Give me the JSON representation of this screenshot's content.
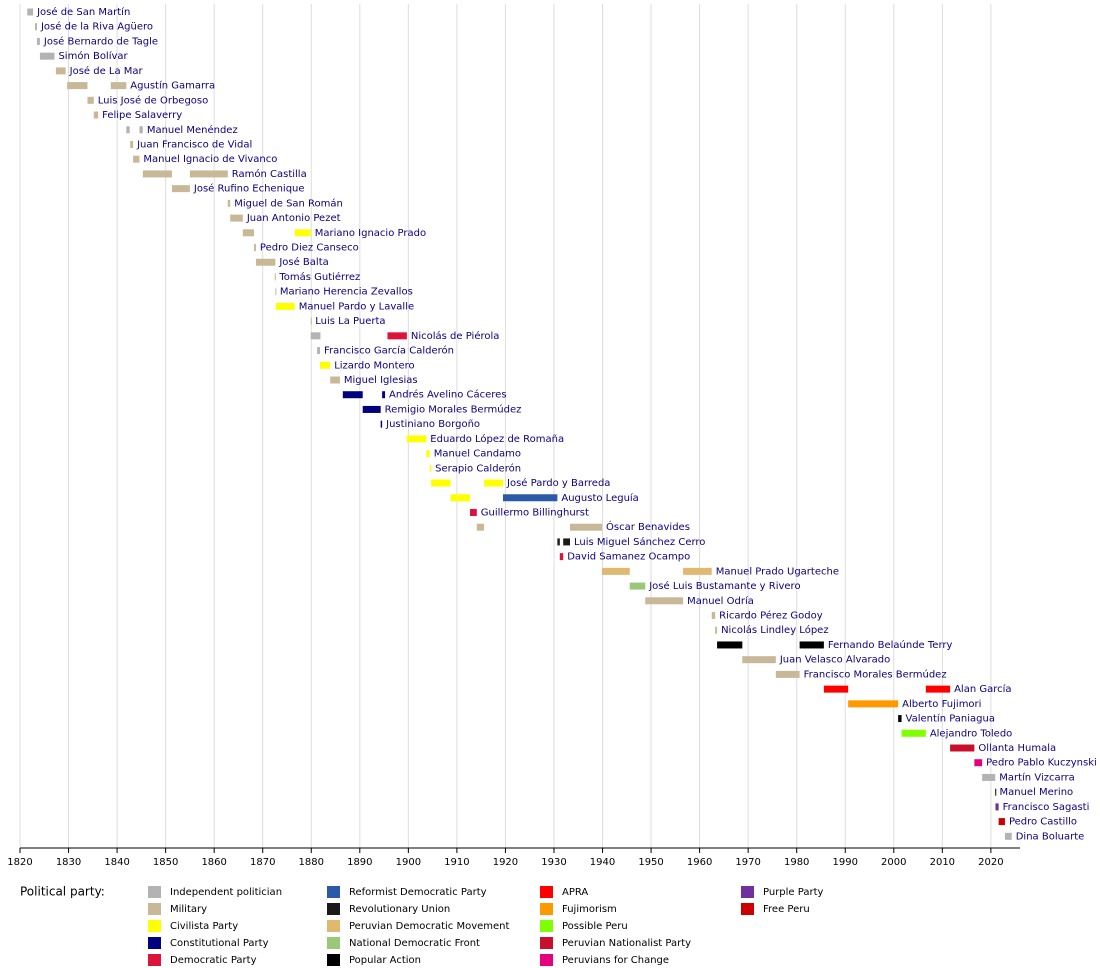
{
  "chart_data": {
    "type": "timeline",
    "xlim": [
      1820,
      2026
    ],
    "xticks": [
      1820,
      1830,
      1840,
      1850,
      1860,
      1870,
      1880,
      1890,
      1900,
      1910,
      1920,
      1930,
      1940,
      1950,
      1960,
      1970,
      1980,
      1990,
      2000,
      2010,
      2020
    ],
    "grid": true,
    "legend_title": "Political party:",
    "parties": [
      {
        "name": "Independent politician",
        "color": "#b3b3b3"
      },
      {
        "name": "Military",
        "color": "#c8b898"
      },
      {
        "name": "Civilista Party",
        "color": "#ffff00"
      },
      {
        "name": "Constitutional Party",
        "color": "#000080"
      },
      {
        "name": "Democratic Party",
        "color": "#dc143c"
      },
      {
        "name": "Reformist Democratic Party",
        "color": "#2b5ba8"
      },
      {
        "name": "Revolutionary Union",
        "color": "#1a1a1a"
      },
      {
        "name": "Peruvian Democratic Movement",
        "color": "#e0b870"
      },
      {
        "name": "National Democratic Front",
        "color": "#98c878"
      },
      {
        "name": "Popular Action",
        "color": "#000000"
      },
      {
        "name": "APRA",
        "color": "#ff0000"
      },
      {
        "name": "Fujimorism",
        "color": "#ff9900"
      },
      {
        "name": "Possible Peru",
        "color": "#80ff00"
      },
      {
        "name": "Peruvian Nationalist Party",
        "color": "#c8102e"
      },
      {
        "name": "Peruvians for Change",
        "color": "#e6007e"
      },
      {
        "name": "Purple Party",
        "color": "#7030a0"
      },
      {
        "name": "Free Peru",
        "color": "#cc0000"
      }
    ],
    "presidents": [
      {
        "name": "José de San Martín",
        "terms": [
          {
            "start": 1821.5,
            "end": 1822.7,
            "party": "Independent politician"
          }
        ]
      },
      {
        "name": "José de la Riva Agüero",
        "terms": [
          {
            "start": 1823.1,
            "end": 1823.5,
            "party": "Independent politician"
          }
        ]
      },
      {
        "name": "José Bernardo de Tagle",
        "terms": [
          {
            "start": 1823.5,
            "end": 1824.1,
            "party": "Independent politician"
          }
        ]
      },
      {
        "name": "Simón Bolívar",
        "terms": [
          {
            "start": 1824.1,
            "end": 1827.1,
            "party": "Independent politician"
          }
        ]
      },
      {
        "name": "José de La Mar",
        "terms": [
          {
            "start": 1827.4,
            "end": 1829.4,
            "party": "Military"
          }
        ]
      },
      {
        "name": "Agustín Gamarra",
        "terms": [
          {
            "start": 1829.7,
            "end": 1833.9,
            "party": "Military"
          },
          {
            "start": 1838.7,
            "end": 1841.9,
            "party": "Military"
          }
        ]
      },
      {
        "name": "Luis José de Orbegoso",
        "terms": [
          {
            "start": 1833.9,
            "end": 1835.2,
            "party": "Military"
          }
        ]
      },
      {
        "name": "Felipe Salaverry",
        "terms": [
          {
            "start": 1835.2,
            "end": 1836.1,
            "party": "Military"
          }
        ]
      },
      {
        "name": "Manuel Menéndez",
        "terms": [
          {
            "start": 1841.9,
            "end": 1842.6,
            "party": "Independent politician"
          },
          {
            "start": 1844.6,
            "end": 1845.3,
            "party": "Independent politician"
          }
        ]
      },
      {
        "name": "Juan Francisco de Vidal",
        "terms": [
          {
            "start": 1842.7,
            "end": 1843.3,
            "party": "Military"
          }
        ]
      },
      {
        "name": "Manuel Ignacio de Vivanco",
        "terms": [
          {
            "start": 1843.3,
            "end": 1844.6,
            "party": "Military"
          }
        ]
      },
      {
        "name": "Ramón Castilla",
        "terms": [
          {
            "start": 1845.3,
            "end": 1851.3,
            "party": "Military"
          },
          {
            "start": 1855.0,
            "end": 1862.8,
            "party": "Military"
          }
        ]
      },
      {
        "name": "José Rufino Echenique",
        "terms": [
          {
            "start": 1851.3,
            "end": 1855.0,
            "party": "Military"
          }
        ]
      },
      {
        "name": "Miguel de San Román",
        "terms": [
          {
            "start": 1862.8,
            "end": 1863.3,
            "party": "Military"
          }
        ]
      },
      {
        "name": "Juan Antonio Pezet",
        "terms": [
          {
            "start": 1863.3,
            "end": 1865.9,
            "party": "Military"
          }
        ]
      },
      {
        "name": "Mariano Ignacio Prado",
        "terms": [
          {
            "start": 1865.9,
            "end": 1868.2,
            "party": "Military"
          },
          {
            "start": 1876.6,
            "end": 1879.9,
            "party": "Civilista Party"
          }
        ]
      },
      {
        "name": "Pedro Diez Canseco",
        "terms": [
          {
            "start": 1868.2,
            "end": 1868.6,
            "party": "Military"
          }
        ]
      },
      {
        "name": "José Balta",
        "terms": [
          {
            "start": 1868.6,
            "end": 1872.6,
            "party": "Military"
          }
        ]
      },
      {
        "name": "Tomás Gutiérrez",
        "terms": [
          {
            "start": 1872.5,
            "end": 1872.6,
            "party": "Military"
          }
        ]
      },
      {
        "name": "Mariano Herencia Zevallos",
        "terms": [
          {
            "start": 1872.6,
            "end": 1872.7,
            "party": "Military"
          }
        ]
      },
      {
        "name": "Manuel Pardo y Lavalle",
        "terms": [
          {
            "start": 1872.7,
            "end": 1876.6,
            "party": "Civilista Party"
          }
        ]
      },
      {
        "name": "Luis La Puerta",
        "terms": [
          {
            "start": 1879.9,
            "end": 1880.0,
            "party": "Military"
          }
        ]
      },
      {
        "name": "Nicolás de Piérola",
        "terms": [
          {
            "start": 1879.9,
            "end": 1881.9,
            "party": "Independent politician"
          },
          {
            "start": 1895.7,
            "end": 1899.7,
            "party": "Democratic Party"
          }
        ]
      },
      {
        "name": "Francisco García Calderón",
        "terms": [
          {
            "start": 1881.2,
            "end": 1881.8,
            "party": "Independent politician"
          }
        ]
      },
      {
        "name": "Lizardo Montero",
        "terms": [
          {
            "start": 1881.8,
            "end": 1883.9,
            "party": "Civilista Party"
          }
        ]
      },
      {
        "name": "Miguel Iglesias",
        "terms": [
          {
            "start": 1883.9,
            "end": 1885.9,
            "party": "Military"
          }
        ]
      },
      {
        "name": "Andrés Avelino Cáceres",
        "terms": [
          {
            "start": 1886.5,
            "end": 1890.6,
            "party": "Constitutional Party"
          },
          {
            "start": 1894.6,
            "end": 1895.2,
            "party": "Constitutional Party"
          }
        ]
      },
      {
        "name": "Remigio Morales Bermúdez",
        "terms": [
          {
            "start": 1890.6,
            "end": 1894.3,
            "party": "Constitutional Party"
          }
        ]
      },
      {
        "name": "Justiniano Borgoño",
        "terms": [
          {
            "start": 1894.3,
            "end": 1894.6,
            "party": "Constitutional Party"
          }
        ]
      },
      {
        "name": "Eduardo López de Romaña",
        "terms": [
          {
            "start": 1899.7,
            "end": 1903.7,
            "party": "Civilista Party"
          }
        ]
      },
      {
        "name": "Manuel Candamo",
        "terms": [
          {
            "start": 1903.7,
            "end": 1904.4,
            "party": "Civilista Party"
          }
        ]
      },
      {
        "name": "Serapio Calderón",
        "terms": [
          {
            "start": 1904.4,
            "end": 1904.7,
            "party": "Civilista Party"
          }
        ]
      },
      {
        "name": "José Pardo y Barreda",
        "terms": [
          {
            "start": 1904.7,
            "end": 1908.7,
            "party": "Civilista Party"
          },
          {
            "start": 1915.6,
            "end": 1919.5,
            "party": "Civilista Party"
          }
        ]
      },
      {
        "name": "Augusto Leguía",
        "terms": [
          {
            "start": 1908.7,
            "end": 1912.7,
            "party": "Civilista Party"
          },
          {
            "start": 1919.5,
            "end": 1930.7,
            "party": "Reformist Democratic Party"
          }
        ]
      },
      {
        "name": "Guillermo Billinghurst",
        "terms": [
          {
            "start": 1912.7,
            "end": 1914.1,
            "party": "Democratic Party"
          }
        ]
      },
      {
        "name": "Óscar Benavides",
        "terms": [
          {
            "start": 1914.1,
            "end": 1915.6,
            "party": "Military"
          },
          {
            "start": 1933.3,
            "end": 1939.9,
            "party": "Military"
          }
        ]
      },
      {
        "name": "Luis Miguel Sánchez Cerro",
        "terms": [
          {
            "start": 1930.7,
            "end": 1931.2,
            "party": "Revolutionary Union"
          },
          {
            "start": 1931.9,
            "end": 1933.3,
            "party": "Revolutionary Union"
          }
        ]
      },
      {
        "name": "David Samanez Ocampo",
        "terms": [
          {
            "start": 1931.2,
            "end": 1931.9,
            "party": "Democratic Party"
          }
        ]
      },
      {
        "name": "Manuel Prado Ugarteche",
        "terms": [
          {
            "start": 1939.9,
            "end": 1945.6,
            "party": "Peruvian Democratic Movement"
          },
          {
            "start": 1956.6,
            "end": 1962.5,
            "party": "Peruvian Democratic Movement"
          }
        ]
      },
      {
        "name": "José Luis Bustamante y Rivero",
        "terms": [
          {
            "start": 1945.6,
            "end": 1948.8,
            "party": "National Democratic Front"
          }
        ]
      },
      {
        "name": "Manuel Odría",
        "terms": [
          {
            "start": 1948.8,
            "end": 1956.6,
            "party": "Military"
          }
        ]
      },
      {
        "name": "Ricardo Pérez Godoy",
        "terms": [
          {
            "start": 1962.5,
            "end": 1963.2,
            "party": "Military"
          }
        ]
      },
      {
        "name": "Nicolás Lindley López",
        "terms": [
          {
            "start": 1963.2,
            "end": 1963.6,
            "party": "Military"
          }
        ]
      },
      {
        "name": "Fernando Belaúnde Terry",
        "terms": [
          {
            "start": 1963.6,
            "end": 1968.8,
            "party": "Popular Action"
          },
          {
            "start": 1980.6,
            "end": 1985.6,
            "party": "Popular Action"
          }
        ]
      },
      {
        "name": "Juan Velasco Alvarado",
        "terms": [
          {
            "start": 1968.8,
            "end": 1975.7,
            "party": "Military"
          }
        ]
      },
      {
        "name": "Francisco Morales Bermúdez",
        "terms": [
          {
            "start": 1975.7,
            "end": 1980.6,
            "party": "Military"
          }
        ]
      },
      {
        "name": "Alan García",
        "terms": [
          {
            "start": 1985.6,
            "end": 1990.6,
            "party": "APRA"
          },
          {
            "start": 2006.6,
            "end": 2011.6,
            "party": "APRA"
          }
        ]
      },
      {
        "name": "Alberto Fujimori",
        "terms": [
          {
            "start": 1990.6,
            "end": 2000.9,
            "party": "Fujimorism"
          }
        ]
      },
      {
        "name": "Valentín Paniagua",
        "terms": [
          {
            "start": 2000.9,
            "end": 2001.6,
            "party": "Popular Action"
          }
        ]
      },
      {
        "name": "Alejandro Toledo",
        "terms": [
          {
            "start": 2001.6,
            "end": 2006.6,
            "party": "Possible Peru"
          }
        ]
      },
      {
        "name": "Ollanta Humala",
        "terms": [
          {
            "start": 2011.6,
            "end": 2016.6,
            "party": "Peruvian Nationalist Party"
          }
        ]
      },
      {
        "name": "Pedro Pablo Kuczynski",
        "terms": [
          {
            "start": 2016.6,
            "end": 2018.2,
            "party": "Peruvians for Change"
          }
        ]
      },
      {
        "name": "Martín Vizcarra",
        "terms": [
          {
            "start": 2018.2,
            "end": 2020.9,
            "party": "Independent politician"
          }
        ]
      },
      {
        "name": "Manuel Merino",
        "terms": [
          {
            "start": 2020.9,
            "end": 2020.95,
            "party": "Popular Action"
          }
        ]
      },
      {
        "name": "Francisco Sagasti",
        "terms": [
          {
            "start": 2020.95,
            "end": 2021.6,
            "party": "Purple Party"
          }
        ]
      },
      {
        "name": "Pedro Castillo",
        "terms": [
          {
            "start": 2021.6,
            "end": 2022.9,
            "party": "Free Peru"
          }
        ]
      },
      {
        "name": "Dina Boluarte",
        "terms": [
          {
            "start": 2022.9,
            "end": 2024.3,
            "party": "Independent politician"
          }
        ]
      }
    ]
  }
}
